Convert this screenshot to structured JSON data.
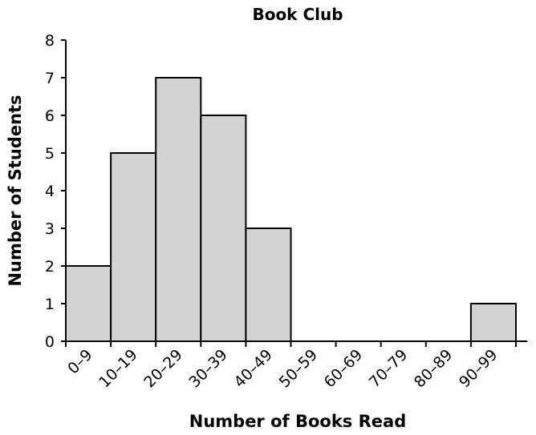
{
  "chart_data": {
    "type": "bar",
    "title": "Book Club",
    "xlabel": "Number of Books Read",
    "ylabel": "Number of Students",
    "categories": [
      "0–9",
      "10–19",
      "20–29",
      "30–39",
      "40–49",
      "50–59",
      "60–69",
      "70–79",
      "80–89",
      "90–99"
    ],
    "values": [
      2,
      5,
      7,
      6,
      3,
      0,
      0,
      0,
      0,
      1
    ],
    "ylim": [
      0,
      8
    ],
    "yticks": [
      0,
      1,
      2,
      3,
      4,
      5,
      6,
      7,
      8
    ],
    "grid": false,
    "colors": {
      "bar_fill": "#d3d3d3",
      "bar_stroke": "#000000"
    }
  }
}
